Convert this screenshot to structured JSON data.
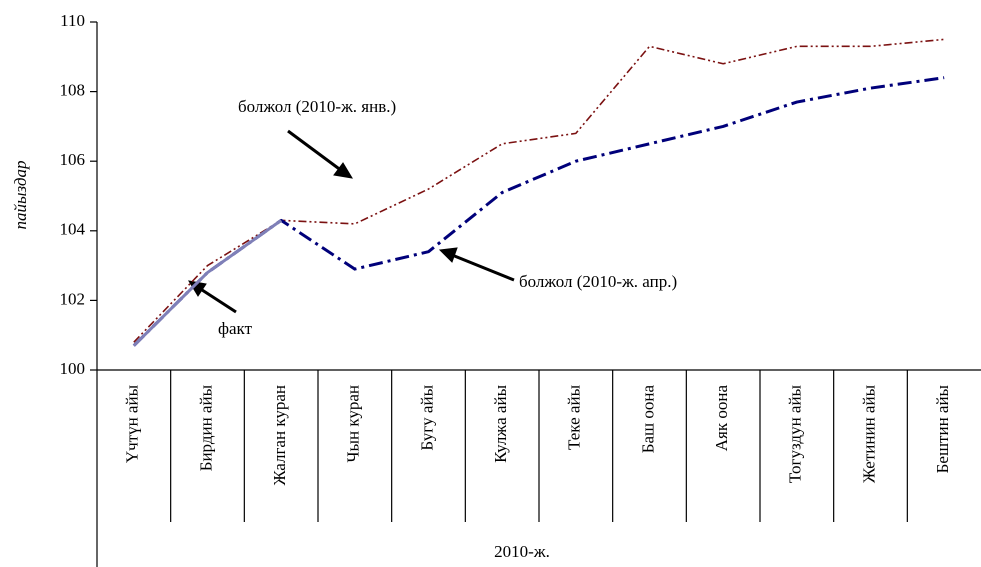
{
  "chart_data": {
    "type": "line",
    "y_label": "пайыздар",
    "x_label": "2010-ж.",
    "categories": [
      "Үчтүн айы",
      "Бирдин айы",
      "Жалган куран",
      "Чын куран",
      "Бугу айы",
      "Кулжа айы",
      "Теке айы",
      "Баш оона",
      "Аяк оона",
      "Тогуздун айы",
      "Жетинин айы",
      "Бештин айы"
    ],
    "series": [
      {
        "name": "болжол (2010-ж. янв.)",
        "color": "#7b1111",
        "values": [
          100.8,
          103.0,
          104.3,
          104.2,
          105.2,
          106.5,
          106.8,
          109.3,
          108.8,
          109.3,
          109.3,
          109.5
        ]
      },
      {
        "name": "болжол (2010-ж. апр.)",
        "color": "#00007a",
        "values": [
          100.7,
          102.8,
          104.3,
          102.9,
          103.4,
          105.1,
          106.0,
          106.5,
          107.0,
          107.7,
          108.1,
          108.4
        ]
      },
      {
        "name": "факт",
        "color": "#7f80b8",
        "values": [
          100.7,
          102.8,
          104.3,
          null,
          null,
          null,
          null,
          null,
          null,
          null,
          null,
          null
        ]
      }
    ],
    "ylim": [
      100,
      110
    ],
    "yticks": [
      100,
      102,
      104,
      106,
      108,
      110
    ]
  }
}
